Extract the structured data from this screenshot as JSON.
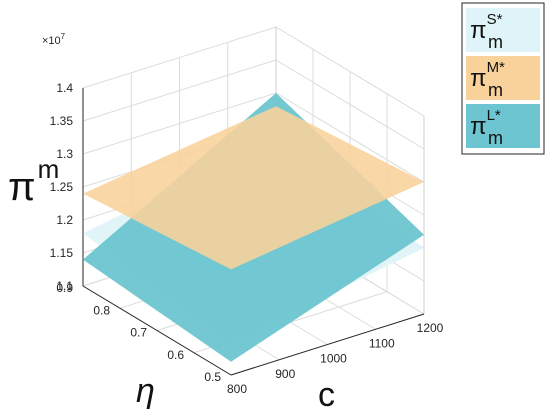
{
  "chart_data": {
    "type": "surface3d",
    "title": "",
    "exponent_label": "×10",
    "exponent_power": "7",
    "xlabel": "c",
    "ylabel": "η",
    "zlabel": "π",
    "zlabel_sub": "m",
    "xlim": [
      800,
      1200
    ],
    "ylim": [
      0.5,
      0.9
    ],
    "zlim": [
      1.1,
      1.4
    ],
    "x_ticks": [
      "800",
      "900",
      "1000",
      "1100",
      "1200"
    ],
    "y_ticks": [
      "0.5",
      "0.6",
      "0.7",
      "0.8",
      "0.9"
    ],
    "z_ticks": [
      "1.1",
      "1.15",
      "1.2",
      "1.25",
      "1.3",
      "1.35",
      "1.4"
    ],
    "grid": true,
    "legend_position": "top-right",
    "series": [
      {
        "name": "π",
        "sub": "m",
        "sup": "S*",
        "color": "#dff4f8",
        "corners": {
          "c800_eta0.5": 1.15,
          "c1200_eta0.5": 1.2,
          "c800_eta0.9": 1.18,
          "c1200_eta0.9": 1.23
        }
      },
      {
        "name": "π",
        "sub": "m",
        "sup": "M*",
        "color": "#f9d19a",
        "corners": {
          "c800_eta0.5": 1.26,
          "c1200_eta0.5": 1.3,
          "c800_eta0.9": 1.24,
          "c1200_eta0.9": 1.28
        }
      },
      {
        "name": "π",
        "sub": "m",
        "sup": "L*",
        "color": "#6cc5d0",
        "corners": {
          "c800_eta0.5": 1.12,
          "c1200_eta0.5": 1.22,
          "c800_eta0.9": 1.14,
          "c1200_eta0.9": 1.3
        }
      }
    ]
  }
}
